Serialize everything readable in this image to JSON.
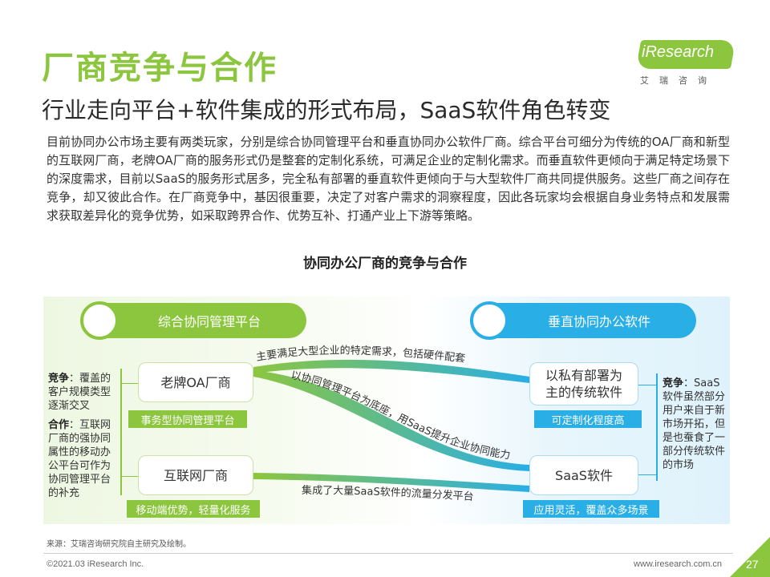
{
  "header": {
    "title": "厂商竞争与合作",
    "subtitle": "行业走向平台+软件集成的形式布局，SaaS软件角色转变"
  },
  "logo": {
    "brand": "iResearch",
    "cn": "艾瑞咨询"
  },
  "intro": "目前协同办公市场主要有两类玩家，分别是综合协同管理平台和垂直协同办公软件厂商。综合平台可细分为传统的OA厂商和新型的互联网厂商，老牌OA厂商的服务形式仍是整套的定制化系统，可满足企业的定制化需求。而垂直软件更倾向于满足特定场景下的深度需求，目前以SaaS的服务形式居多，完全私有部署的垂直软件更倾向于与大型软件厂商共同提供服务。这些厂商之间存在竞争，却又彼此合作。在厂商竞争中，基因很重要，决定了对客户需求的洞察程度，因此各玩家均会根据自身业务特点和发展需求获取差异化的竞争优势，如采取跨界合作、优势互补、打通产业上下游等策略。",
  "diagram": {
    "title": "协同办公厂商的竞争与合作",
    "left_header": "综合协同管理平台",
    "right_header": "垂直协同办公软件",
    "left_note": {
      "compete_label": "竞争",
      "compete_text": "：覆盖的客户规模类型逐渐交叉",
      "coop_label": "合作",
      "coop_text": "：互联网厂商的强协同属性的移动办公平台可作为协同管理平台的补充"
    },
    "right_note": {
      "compete_label": "竞争",
      "compete_text": "：SaaS软件虽然部分用户来自于新市场开拓，但是也蚕食了一部分传统软件的市场"
    },
    "left_boxes": [
      {
        "label": "老牌OA厂商",
        "tag": "事务型协同管理平台"
      },
      {
        "label": "互联网厂商",
        "tag": "移动端优势，轻量化服务"
      }
    ],
    "right_boxes": [
      {
        "label": "以私有部署为主的传统软件",
        "tag": "可定制化程度高"
      },
      {
        "label": "SaaS软件",
        "tag": "应用灵活，覆盖众多场景"
      }
    ],
    "flows": [
      "主要满足大型企业的特定需求，包括硬件配套",
      "以协同管理平台为底座，用SaaS提升企业协同能力",
      "集成了大量SaaS软件的流量分发平台"
    ]
  },
  "colors": {
    "green": "#8cc63f",
    "blue": "#29aee5"
  },
  "footer": {
    "source": "来源：艾瑞咨询研究院自主研究及绘制。",
    "copyright": "©2021.03 iResearch Inc.",
    "website": "www.iresearch.com.cn",
    "page": "27"
  }
}
